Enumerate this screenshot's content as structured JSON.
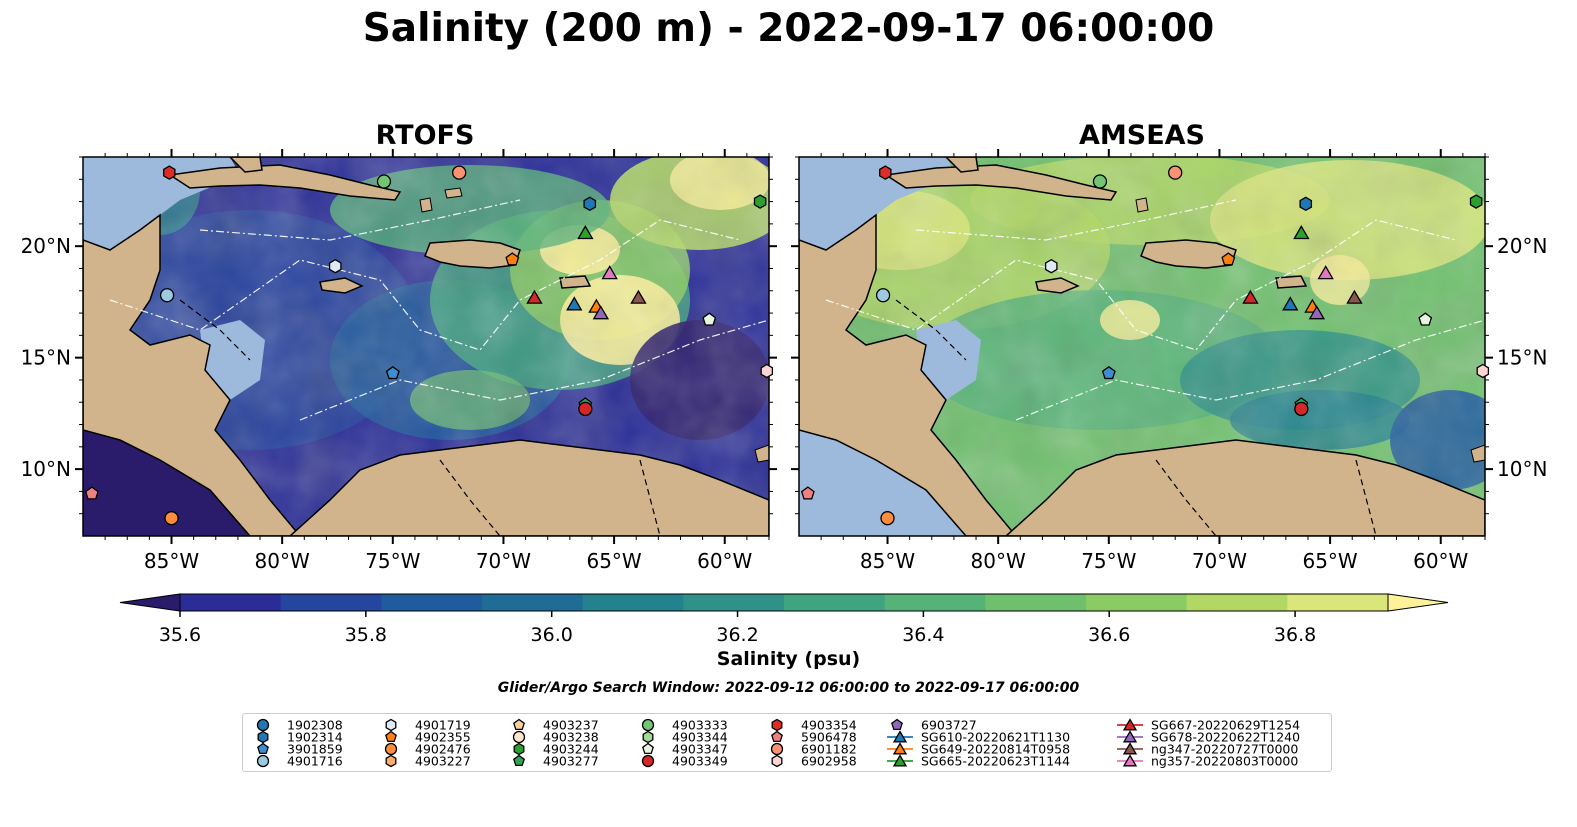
{
  "title": "Salinity (200 m) - 2022-09-17 06:00:00",
  "panels": [
    {
      "id": "rtofs",
      "title": "RTOFS"
    },
    {
      "id": "amseas",
      "title": "AMSEAS"
    }
  ],
  "axes": {
    "lon_ticks": [
      "85°W",
      "80°W",
      "75°W",
      "70°W",
      "65°W",
      "60°W"
    ],
    "lat_ticks": [
      "20°N",
      "15°N",
      "10°N"
    ]
  },
  "colorbar": {
    "label": "Salinity (psu)",
    "tick_labels": [
      "35.6",
      "35.8",
      "36.0",
      "36.2",
      "36.4",
      "36.6",
      "36.8"
    ],
    "min": 35.6,
    "max": 36.9,
    "step": 0.1,
    "colors": [
      "#2a1b6b",
      "#2a2d97",
      "#25469f",
      "#1f5c9d",
      "#1f6d94",
      "#23828e",
      "#2f9288",
      "#3fa47f",
      "#55b378",
      "#6fc06d",
      "#8bcb64",
      "#b1d865",
      "#dbe67a",
      "#fdf19a"
    ]
  },
  "search_window": "Glider/Argo Search Window: 2022-09-12 06:00:00 to 2022-09-17 06:00:00",
  "legend": {
    "columns": [
      [
        {
          "label": "1902308",
          "marker": "circle",
          "color": "#1f77b4"
        },
        {
          "label": "1902314",
          "marker": "hexagon",
          "color": "#1f77b4"
        },
        {
          "label": "3901859",
          "marker": "pentagon",
          "color": "#3c8ed0"
        },
        {
          "label": "4901716",
          "marker": "circle",
          "color": "#9ecae1"
        }
      ],
      [
        {
          "label": "4901719",
          "marker": "hexagon",
          "color": "#deebf7"
        },
        {
          "label": "4902355",
          "marker": "pentagon",
          "color": "#ff7f0e"
        },
        {
          "label": "4902476",
          "marker": "circle",
          "color": "#fd8d3c"
        },
        {
          "label": "4903227",
          "marker": "hexagon",
          "color": "#fdae6b"
        }
      ],
      [
        {
          "label": "4903237",
          "marker": "pentagon",
          "color": "#fdd0a2"
        },
        {
          "label": "4903238",
          "marker": "circle",
          "color": "#fee6ce"
        },
        {
          "label": "4903244",
          "marker": "hexagon",
          "color": "#2ca02c"
        },
        {
          "label": "4903277",
          "marker": "pentagon",
          "color": "#31a354"
        }
      ],
      [
        {
          "label": "4903333",
          "marker": "circle",
          "color": "#74c476"
        },
        {
          "label": "4903344",
          "marker": "hexagon",
          "color": "#a1d99b"
        },
        {
          "label": "4903347",
          "marker": "pentagon",
          "color": "#e5f5e0"
        },
        {
          "label": "4903349",
          "marker": "circle",
          "color": "#d62728"
        }
      ],
      [
        {
          "label": "4903354",
          "marker": "hexagon",
          "color": "#de2d26"
        },
        {
          "label": "5906478",
          "marker": "pentagon",
          "color": "#f08080"
        },
        {
          "label": "6901182",
          "marker": "circle",
          "color": "#fc9272"
        },
        {
          "label": "6902958",
          "marker": "hexagon",
          "color": "#fdd5d5"
        }
      ],
      [
        {
          "label": "6903727",
          "marker": "pentagon",
          "color": "#9467bd"
        },
        {
          "label": "SG610-20220621T1130",
          "marker": "triangle-line",
          "color": "#1f77b4"
        },
        {
          "label": "SG649-20220814T0958",
          "marker": "triangle-line",
          "color": "#ff7f0e"
        },
        {
          "label": "SG665-20220623T1144",
          "marker": "triangle-line",
          "color": "#2ca02c"
        }
      ],
      [
        {
          "label": "SG667-20220629T1254",
          "marker": "triangle-line",
          "color": "#d62728"
        },
        {
          "label": "SG678-20220622T1240",
          "marker": "triangle-line",
          "color": "#9467bd"
        },
        {
          "label": "ng347-20220727T0000",
          "marker": "triangle-line",
          "color": "#8c564b"
        },
        {
          "label": "ng357-20220803T0000",
          "marker": "triangle-line",
          "color": "#e377c2"
        }
      ]
    ]
  }
}
